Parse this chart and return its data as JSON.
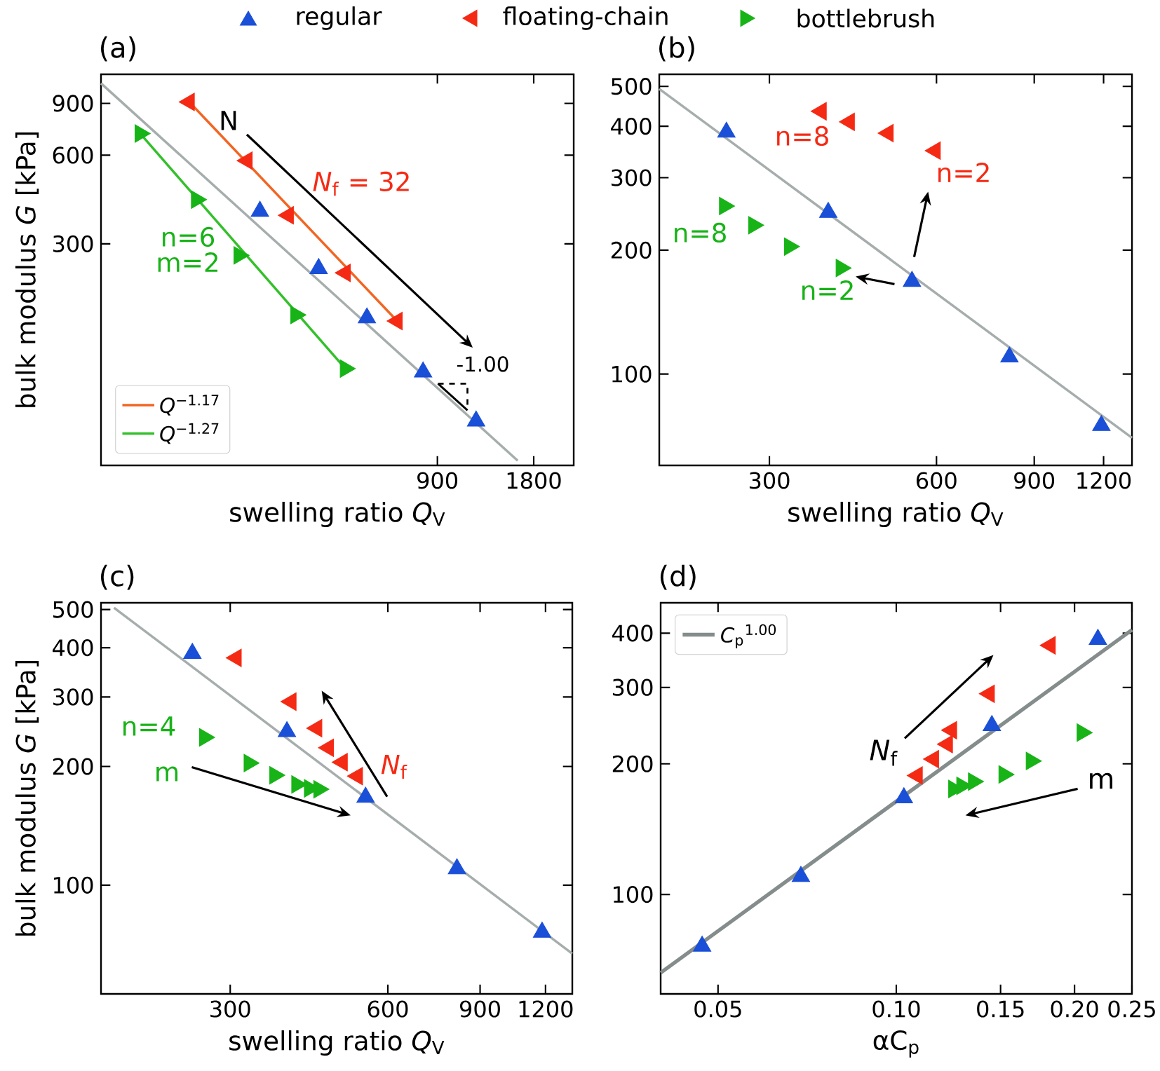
{
  "chart_data": [
    {
      "type": "scatter",
      "title": "(a)",
      "xlabel": "swelling ratio *Q*$_{V}$",
      "ylabel": "bulk modulus *G* [kPa]",
      "log": "xy",
      "xlim": [
        80,
        2400
      ],
      "ylim": [
        53,
        1130
      ],
      "xticks": [
        900,
        1800
      ],
      "yticks": [
        300,
        600,
        900
      ],
      "legend": "top",
      "series": [
        {
          "name": "regular",
          "marker": "triangle",
          "color": "#1a4fd8",
          "x": [
            251,
            383,
            542,
            812,
            1189
          ],
          "values": [
            387,
            247,
            168,
            110,
            75
          ]
        },
        {
          "name": "floating-chain",
          "marker": "triangle-left",
          "color": "#f52a14",
          "x": [
            151,
            229,
            308,
            464,
            674
          ],
          "values": [
            910,
            575,
            375,
            239,
            164
          ]
        },
        {
          "name": "bottlebrush",
          "marker": "triangle-right",
          "color": "#17b317",
          "x": [
            106,
            159,
            216,
            325,
            464
          ],
          "values": [
            711,
            424,
            274,
            172,
            113
          ]
        },
        {
          "type": "line",
          "color": "#a6adad",
          "x": [
            80,
            1604
          ],
          "values": [
            1053,
            55
          ]
        },
        {
          "name": "*Q*$^{−1.17}$",
          "type": "line",
          "color": "#f26522",
          "x": [
            151,
            674
          ],
          "values": [
            910,
            164
          ]
        },
        {
          "name": "*Q*$^{−1.27}$",
          "type": "line",
          "color": "#33c02a",
          "x": [
            106,
            464
          ],
          "values": [
            711,
            113
          ]
        }
      ],
      "annotations": [
        "N",
        "*N*$_{f}$ = 32",
        "n=6",
        "m=2",
        {
          "text": "-1.00",
          "x": 1000,
          "y": 91
        }
      ]
    },
    {
      "type": "scatter",
      "title": "(b)",
      "xlabel": "swelling ratio *Q*$_{V}$",
      "log": "xy",
      "xlim": [
        190,
        1350
      ],
      "ylim": [
        60,
        535
      ],
      "xticks": [
        300,
        600,
        900,
        1200
      ],
      "yticks": [
        100,
        200,
        300,
        400,
        500
      ],
      "series": [
        {
          "marker": "triangle",
          "color": "#1a4fd8",
          "x": [
            251,
            383,
            542,
            812,
            1189
          ],
          "values": [
            387,
            247,
            168,
            110,
            75
          ]
        },
        {
          "marker": "triangle-left",
          "color": "#f52a14",
          "x": [
            372,
            418,
            491,
            597
          ],
          "values": [
            435,
            410,
            385,
            349
          ]
        },
        {
          "marker": "triangle-right",
          "color": "#17b317",
          "x": [
            249,
            281,
            326,
            404
          ],
          "values": [
            256,
            230,
            204,
            181
          ]
        },
        {
          "type": "line",
          "color": "#a6adad",
          "x": [
            190,
            1350
          ],
          "values": [
            493,
            70
          ]
        }
      ],
      "annotations": [
        "n=8",
        "n=2",
        "n=8",
        "n=2"
      ]
    },
    {
      "type": "scatter",
      "title": "(c)",
      "xlabel": "swelling ratio *Q*$_{V}$",
      "ylabel": "bulk modulus *G* [kPa]",
      "log": "xy",
      "xlim": [
        170,
        1350
      ],
      "ylim": [
        53,
        520
      ],
      "xticks": [
        300,
        600,
        900,
        1200
      ],
      "yticks": [
        100,
        200,
        300,
        400,
        500
      ],
      "series": [
        {
          "marker": "triangle",
          "color": "#1a4fd8",
          "x": [
            254,
            385,
            544,
            813,
            1182
          ],
          "values": [
            387,
            245,
            167,
            110,
            76
          ]
        },
        {
          "marker": "triangle-left",
          "color": "#f52a14",
          "x": [
            308,
            392,
            439,
            462,
            491,
            525
          ],
          "values": [
            377,
            292,
            250,
            223,
            205,
            189
          ]
        },
        {
          "marker": "triangle-right",
          "color": "#17b317",
          "x": [
            268,
            326,
            365,
            402,
            425,
            443
          ],
          "values": [
            237,
            204,
            190,
            180,
            176,
            175
          ]
        },
        {
          "type": "line",
          "color": "#a6adad",
          "x": [
            180,
            1350
          ],
          "values": [
            505,
            67
          ]
        }
      ],
      "annotations": [
        "n=4",
        "m",
        "*N*$_{f}$"
      ]
    },
    {
      "type": "scatter",
      "title": "(d)",
      "xlabel": "αC$_{p}$",
      "log": "xy",
      "xlim": [
        0.04,
        0.25
      ],
      "ylim": [
        59,
        470
      ],
      "xticks": [
        0.05,
        {
          "value": 0.1,
          "label": "0.10"
        },
        0.15,
        {
          "value": 0.2,
          "label": "0.20"
        },
        0.25
      ],
      "yticks": [
        100,
        200,
        300,
        400
      ],
      "legend": "top left",
      "series": [
        {
          "marker": "triangle",
          "color": "#1a4fd8",
          "x": [
            0.047,
            0.069,
            0.103,
            0.145,
            0.219
          ],
          "values": [
            76,
            110,
            167,
            245,
            387
          ]
        },
        {
          "marker": "triangle-left",
          "color": "#f52a14",
          "x": [
            0.1085,
            0.1156,
            0.122,
            0.124,
            0.1436,
            0.182
          ],
          "values": [
            188,
            205,
            222,
            239,
            290,
            375
          ]
        },
        {
          "marker": "triangle-right",
          "color": "#17b317",
          "x": [
            0.125,
            0.129,
            0.135,
            0.152,
            0.169,
            0.206
          ],
          "values": [
            175,
            178,
            182,
            189,
            203,
            236
          ]
        },
        {
          "name": "*C*$_{p}$$^{1.00}$",
          "type": "line",
          "color": "#848c8c",
          "x": [
            0.04,
            0.25
          ],
          "values": [
            66,
            407
          ]
        }
      ],
      "annotations": [
        "*N*$_{f}$",
        "m"
      ]
    }
  ]
}
